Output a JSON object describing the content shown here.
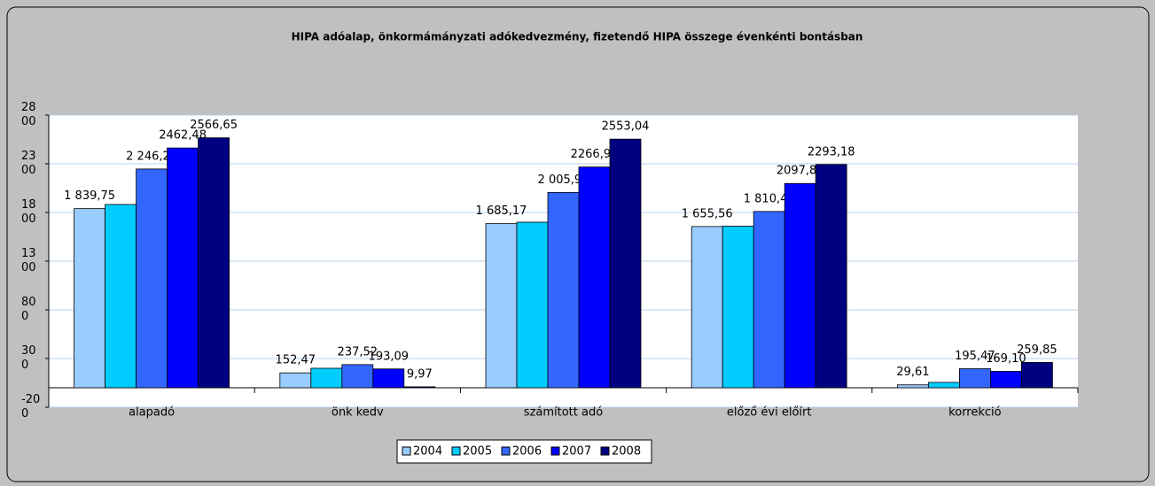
{
  "chart_data": {
    "type": "bar",
    "title": "HIPA adóalap, önkormámányzati adókedvezmény, fizetendő HIPA összege évenkénti bontásban",
    "categories": [
      "alapadó",
      "önk kedv",
      "számított adó",
      "előző évi előírt",
      "korrekció"
    ],
    "series": [
      {
        "name": "2004",
        "color": "#99ccff",
        "values": [
          1839.75,
          152.47,
          1685.17,
          1655.56,
          29.61
        ],
        "value_labels": [
          "1 839,75",
          "152,47",
          "1 685,17",
          "1 655,56",
          "29,61"
        ]
      },
      {
        "name": "2005",
        "color": "#00ccff",
        "values": [
          1882,
          200,
          1700,
          1660,
          55
        ],
        "value_labels": [
          null,
          null,
          null,
          null,
          null
        ]
      },
      {
        "name": "2006",
        "color": "#3366ff",
        "values": [
          2246.28,
          237.52,
          2005.9,
          1810.44,
          195.47
        ],
        "value_labels": [
          "2 246,28",
          "237,52",
          "2 005,90",
          "1 810,44",
          "195,47"
        ]
      },
      {
        "name": "2007",
        "color": "#0000ff",
        "values": [
          2462.48,
          193.09,
          2266.9,
          2097.8,
          169.1
        ],
        "value_labels": [
          "2462,48",
          "193,09",
          "2266,90",
          "2097,80",
          "169,10"
        ]
      },
      {
        "name": "2008",
        "color": "#000080",
        "values": [
          2566.65,
          9.97,
          2553.04,
          2293.18,
          259.85
        ],
        "value_labels": [
          "2566,65",
          "9,97",
          "2553,04",
          "2293,18",
          "259,85"
        ]
      }
    ],
    "ylim": [
      -200,
      2800
    ],
    "yticks": [
      -200,
      300,
      800,
      1300,
      1800,
      2300,
      2800
    ],
    "grid": true,
    "legend": "bottom"
  }
}
